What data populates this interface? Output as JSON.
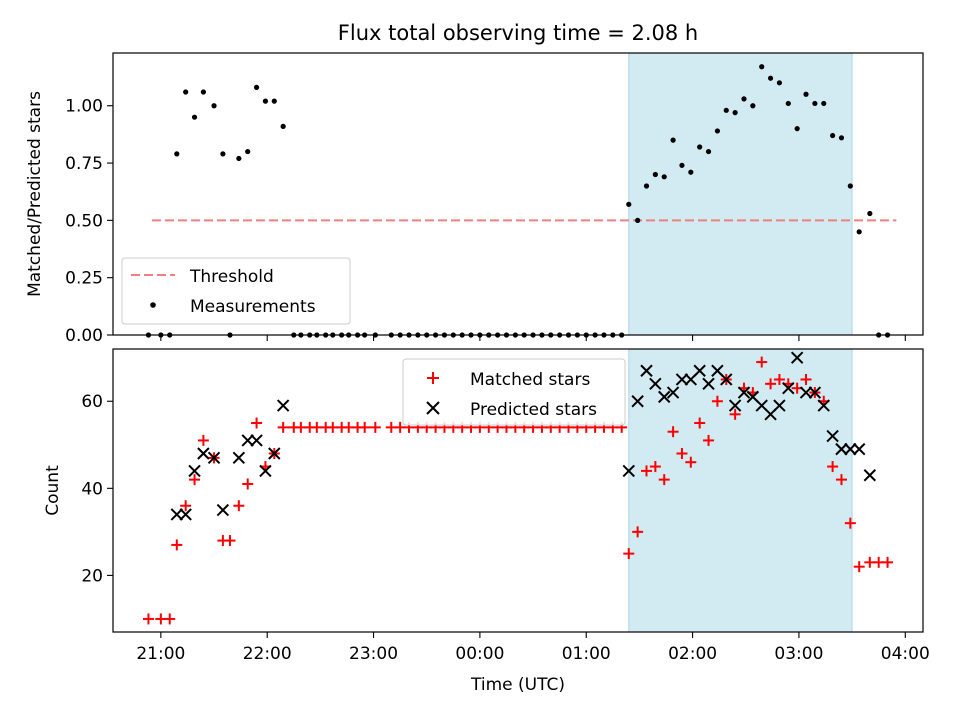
{
  "figure": {
    "title": "Flux total observing time = 2.08 h"
  },
  "colors": {
    "matched": "#ff0000",
    "predicted": "#000000",
    "threshold": "#f08080",
    "measurements": "#000000",
    "shading": "#add8e6"
  },
  "chart_data": [
    {
      "type": "scatter",
      "ylabel": "Matched/Predicted stars",
      "xlabel": "",
      "x_unit": "hours since 00:00 UTC",
      "xlim": [
        "20:33",
        "04:10"
      ],
      "ylim": [
        0,
        1.23
      ],
      "yticks": [
        "0.00",
        "0.25",
        "0.50",
        "0.75",
        "1.00"
      ],
      "shaded_interval": [
        "01:24",
        "03:30"
      ],
      "legend": {
        "position": "lower-left",
        "entries": [
          "Threshold",
          "Measurements"
        ]
      },
      "threshold": {
        "name": "Threshold",
        "value": 0.5,
        "x_range": [
          "20:55",
          "03:55"
        ],
        "style": "dashed"
      },
      "series": [
        {
          "name": "Measurements",
          "marker": "dot",
          "points": [
            [
              "20:53",
              0.0
            ],
            [
              "21:00",
              0.0
            ],
            [
              "21:05",
              0.0
            ],
            [
              "21:09",
              0.79
            ],
            [
              "21:14",
              1.06
            ],
            [
              "21:19",
              0.95
            ],
            [
              "21:24",
              1.06
            ],
            [
              "21:30",
              1.0
            ],
            [
              "21:35",
              0.79
            ],
            [
              "21:39",
              0.0
            ],
            [
              "21:44",
              0.77
            ],
            [
              "21:49",
              0.8
            ],
            [
              "21:54",
              1.08
            ],
            [
              "21:59",
              1.02
            ],
            [
              "22:04",
              1.02
            ],
            [
              "22:09",
              0.91
            ],
            [
              "22:15",
              0.0
            ],
            [
              "22:19",
              0.0
            ],
            [
              "22:24",
              0.0
            ],
            [
              "22:28",
              0.0
            ],
            [
              "22:33",
              0.0
            ],
            [
              "22:37",
              0.0
            ],
            [
              "22:42",
              0.0
            ],
            [
              "22:46",
              0.0
            ],
            [
              "22:51",
              0.0
            ],
            [
              "22:55",
              0.0
            ],
            [
              "23:01",
              0.0
            ],
            [
              "23:10",
              0.0
            ],
            [
              "23:15",
              0.0
            ],
            [
              "23:20",
              0.0
            ],
            [
              "23:25",
              0.0
            ],
            [
              "23:30",
              0.0
            ],
            [
              "23:35",
              0.0
            ],
            [
              "23:40",
              0.0
            ],
            [
              "23:45",
              0.0
            ],
            [
              "23:50",
              0.0
            ],
            [
              "23:55",
              0.0
            ],
            [
              "00:00",
              0.0
            ],
            [
              "00:05",
              0.0
            ],
            [
              "00:10",
              0.0
            ],
            [
              "00:15",
              0.0
            ],
            [
              "00:20",
              0.0
            ],
            [
              "00:25",
              0.0
            ],
            [
              "00:30",
              0.0
            ],
            [
              "00:35",
              0.0
            ],
            [
              "00:40",
              0.0
            ],
            [
              "00:45",
              0.0
            ],
            [
              "00:50",
              0.0
            ],
            [
              "00:55",
              0.0
            ],
            [
              "01:00",
              0.0
            ],
            [
              "01:05",
              0.0
            ],
            [
              "01:10",
              0.0
            ],
            [
              "01:15",
              0.0
            ],
            [
              "01:20",
              0.0
            ],
            [
              "01:24",
              0.57
            ],
            [
              "01:29",
              0.5
            ],
            [
              "01:34",
              0.65
            ],
            [
              "01:39",
              0.7
            ],
            [
              "01:44",
              0.69
            ],
            [
              "01:49",
              0.85
            ],
            [
              "01:54",
              0.74
            ],
            [
              "01:59",
              0.71
            ],
            [
              "02:04",
              0.82
            ],
            [
              "02:09",
              0.8
            ],
            [
              "02:14",
              0.89
            ],
            [
              "02:19",
              0.98
            ],
            [
              "02:24",
              0.97
            ],
            [
              "02:29",
              1.03
            ],
            [
              "02:34",
              1.0
            ],
            [
              "02:39",
              1.17
            ],
            [
              "02:44",
              1.12
            ],
            [
              "02:49",
              1.1
            ],
            [
              "02:54",
              1.01
            ],
            [
              "02:59",
              0.9
            ],
            [
              "03:04",
              1.05
            ],
            [
              "03:09",
              1.01
            ],
            [
              "03:14",
              1.01
            ],
            [
              "03:19",
              0.87
            ],
            [
              "03:24",
              0.86
            ],
            [
              "03:29",
              0.65
            ],
            [
              "03:34",
              0.45
            ],
            [
              "03:40",
              0.53
            ],
            [
              "03:45",
              0.0
            ],
            [
              "03:50",
              0.0
            ]
          ]
        }
      ]
    },
    {
      "type": "scatter",
      "xlabel": "Time (UTC)",
      "ylabel": "Count",
      "x_unit": "hours since 00:00 UTC",
      "xlim": [
        "20:33",
        "04:10"
      ],
      "ylim": [
        7,
        72
      ],
      "xticks": [
        "21:00",
        "22:00",
        "23:00",
        "00:00",
        "01:00",
        "02:00",
        "03:00",
        "04:00"
      ],
      "yticks": [
        "20",
        "40",
        "60"
      ],
      "shaded_interval": [
        "01:24",
        "03:30"
      ],
      "legend": {
        "position": "top-center",
        "entries": [
          "Matched stars",
          "Predicted stars"
        ]
      },
      "series": [
        {
          "name": "Matched stars",
          "marker": "plus",
          "points": [
            [
              "20:53",
              10
            ],
            [
              "21:00",
              10
            ],
            [
              "21:05",
              10
            ],
            [
              "21:09",
              27
            ],
            [
              "21:14",
              36
            ],
            [
              "21:19",
              42
            ],
            [
              "21:24",
              51
            ],
            [
              "21:30",
              47
            ],
            [
              "21:35",
              28
            ],
            [
              "21:39",
              28
            ],
            [
              "21:44",
              36
            ],
            [
              "21:49",
              41
            ],
            [
              "21:54",
              55
            ],
            [
              "21:59",
              45
            ],
            [
              "22:04",
              48
            ],
            [
              "22:09",
              54
            ],
            [
              "22:15",
              54
            ],
            [
              "22:19",
              54
            ],
            [
              "22:24",
              54
            ],
            [
              "22:28",
              54
            ],
            [
              "22:33",
              54
            ],
            [
              "22:37",
              54
            ],
            [
              "22:42",
              54
            ],
            [
              "22:46",
              54
            ],
            [
              "22:51",
              54
            ],
            [
              "22:55",
              54
            ],
            [
              "23:01",
              54
            ],
            [
              "23:10",
              54
            ],
            [
              "23:15",
              54
            ],
            [
              "23:20",
              54
            ],
            [
              "23:25",
              54
            ],
            [
              "23:30",
              54
            ],
            [
              "23:35",
              54
            ],
            [
              "23:40",
              54
            ],
            [
              "23:45",
              54
            ],
            [
              "23:50",
              54
            ],
            [
              "23:55",
              54
            ],
            [
              "00:00",
              54
            ],
            [
              "00:05",
              54
            ],
            [
              "00:10",
              54
            ],
            [
              "00:15",
              54
            ],
            [
              "00:20",
              54
            ],
            [
              "00:25",
              54
            ],
            [
              "00:30",
              54
            ],
            [
              "00:35",
              54
            ],
            [
              "00:40",
              54
            ],
            [
              "00:45",
              54
            ],
            [
              "00:50",
              54
            ],
            [
              "00:55",
              54
            ],
            [
              "01:00",
              54
            ],
            [
              "01:05",
              54
            ],
            [
              "01:10",
              54
            ],
            [
              "01:15",
              54
            ],
            [
              "01:20",
              54
            ],
            [
              "01:24",
              25
            ],
            [
              "01:29",
              30
            ],
            [
              "01:34",
              44
            ],
            [
              "01:39",
              45
            ],
            [
              "01:44",
              42
            ],
            [
              "01:49",
              53
            ],
            [
              "01:54",
              48
            ],
            [
              "01:59",
              46
            ],
            [
              "02:04",
              55
            ],
            [
              "02:09",
              51
            ],
            [
              "02:14",
              60
            ],
            [
              "02:19",
              65
            ],
            [
              "02:24",
              57
            ],
            [
              "02:29",
              63
            ],
            [
              "02:34",
              62
            ],
            [
              "02:39",
              69
            ],
            [
              "02:44",
              64
            ],
            [
              "02:49",
              65
            ],
            [
              "02:54",
              64
            ],
            [
              "02:59",
              63
            ],
            [
              "03:04",
              65
            ],
            [
              "03:09",
              62
            ],
            [
              "03:14",
              60
            ],
            [
              "03:19",
              45
            ],
            [
              "03:24",
              42
            ],
            [
              "03:29",
              32
            ],
            [
              "03:34",
              22
            ],
            [
              "03:40",
              23
            ],
            [
              "03:45",
              23
            ],
            [
              "03:50",
              23
            ]
          ]
        },
        {
          "name": "Predicted stars",
          "marker": "x",
          "points": [
            [
              "21:09",
              34
            ],
            [
              "21:14",
              34
            ],
            [
              "21:19",
              44
            ],
            [
              "21:24",
              48
            ],
            [
              "21:30",
              47
            ],
            [
              "21:35",
              35
            ],
            [
              "21:44",
              47
            ],
            [
              "21:49",
              51
            ],
            [
              "21:54",
              51
            ],
            [
              "21:59",
              44
            ],
            [
              "22:04",
              48
            ],
            [
              "22:09",
              59
            ],
            [
              "01:24",
              44
            ],
            [
              "01:29",
              60
            ],
            [
              "01:34",
              67
            ],
            [
              "01:39",
              64
            ],
            [
              "01:44",
              61
            ],
            [
              "01:49",
              62
            ],
            [
              "01:54",
              65
            ],
            [
              "01:59",
              65
            ],
            [
              "02:04",
              67
            ],
            [
              "02:09",
              64
            ],
            [
              "02:14",
              67
            ],
            [
              "02:19",
              65
            ],
            [
              "02:24",
              59
            ],
            [
              "02:29",
              62
            ],
            [
              "02:34",
              61
            ],
            [
              "02:39",
              59
            ],
            [
              "02:44",
              57
            ],
            [
              "02:49",
              59
            ],
            [
              "02:54",
              63
            ],
            [
              "02:59",
              70
            ],
            [
              "03:04",
              62
            ],
            [
              "03:09",
              62
            ],
            [
              "03:14",
              59
            ],
            [
              "03:19",
              52
            ],
            [
              "03:24",
              49
            ],
            [
              "03:29",
              49
            ],
            [
              "03:34",
              49
            ],
            [
              "03:40",
              43
            ]
          ]
        }
      ]
    }
  ]
}
